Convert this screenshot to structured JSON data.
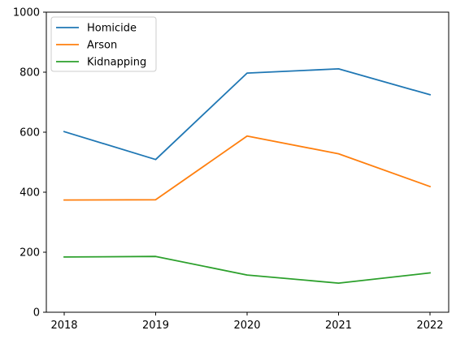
{
  "chart_data": {
    "type": "line",
    "title": "",
    "xlabel": "",
    "ylabel": "",
    "x": [
      "2018",
      "2019",
      "2020",
      "2021",
      "2022"
    ],
    "ylim": [
      0,
      1000
    ],
    "yticks": [
      0,
      200,
      400,
      600,
      800,
      1000
    ],
    "grid": false,
    "legend_position": "top-left",
    "series": [
      {
        "name": "Homicide",
        "color": "#1f77b4",
        "values": [
          602,
          509,
          797,
          811,
          725
        ]
      },
      {
        "name": "Arson",
        "color": "#ff7f0e",
        "values": [
          374,
          375,
          587,
          528,
          419
        ]
      },
      {
        "name": "Kidnapping",
        "color": "#2ca02c",
        "values": [
          184,
          186,
          124,
          97,
          131
        ]
      }
    ]
  }
}
